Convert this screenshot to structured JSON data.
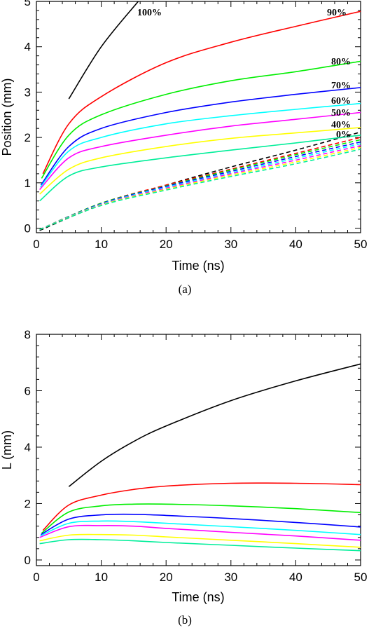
{
  "chart_data": [
    {
      "type": "line",
      "caption": "(a)",
      "xlabel": "Time (ns)",
      "ylabel": "Position (mm)",
      "xlim": [
        0,
        50
      ],
      "ylim": [
        -0.1,
        5
      ],
      "xticks": [
        "0",
        "10",
        "20",
        "30",
        "40",
        "50"
      ],
      "yticks": [
        "0",
        "1",
        "2",
        "3",
        "4",
        "5"
      ],
      "grid": false,
      "solid_series": [
        {
          "name": "100%",
          "color": "#000000",
          "x": [
            5,
            10,
            15.7
          ],
          "y": [
            2.85,
            4.0,
            5.0
          ]
        },
        {
          "name": "90%",
          "color": "#ff0000",
          "x": [
            1,
            5,
            10,
            20,
            30,
            40,
            50
          ],
          "y": [
            1.2,
            2.3,
            2.9,
            3.65,
            4.1,
            4.45,
            4.78
          ]
        },
        {
          "name": "80%",
          "color": "#00ee00",
          "x": [
            0.8,
            5,
            10,
            20,
            30,
            40,
            50
          ],
          "y": [
            1.1,
            2.05,
            2.5,
            2.95,
            3.25,
            3.45,
            3.68
          ]
        },
        {
          "name": "70%",
          "color": "#0000ff",
          "x": [
            0.7,
            5,
            10,
            20,
            30,
            40,
            50
          ],
          "y": [
            0.95,
            1.8,
            2.2,
            2.55,
            2.78,
            2.95,
            3.1
          ]
        },
        {
          "name": "60%",
          "color": "#00ffff",
          "x": [
            0.6,
            5,
            10,
            20,
            30,
            40,
            50
          ],
          "y": [
            0.9,
            1.7,
            2.0,
            2.3,
            2.48,
            2.62,
            2.75
          ]
        },
        {
          "name": "50%",
          "color": "#ff00ff",
          "x": [
            0.5,
            5,
            10,
            20,
            30,
            40,
            50
          ],
          "y": [
            0.85,
            1.55,
            1.8,
            2.05,
            2.25,
            2.4,
            2.55
          ]
        },
        {
          "name": "40%",
          "color": "#ffff00",
          "x": [
            0.5,
            5,
            10,
            20,
            30,
            40,
            50
          ],
          "y": [
            0.75,
            1.3,
            1.55,
            1.8,
            1.98,
            2.1,
            2.22
          ]
        },
        {
          "name": "0%",
          "color": "#00ee99",
          "x": [
            0.5,
            5,
            10,
            20,
            30,
            40,
            50
          ],
          "y": [
            0.6,
            1.15,
            1.35,
            1.55,
            1.72,
            1.88,
            2.05
          ]
        }
      ],
      "dashed_series": [
        {
          "color": "#000000",
          "x": [
            0.5,
            10,
            20,
            30,
            40,
            50
          ],
          "y": [
            -0.05,
            0.52,
            0.95,
            1.35,
            1.72,
            2.12
          ]
        },
        {
          "color": "#ff0000",
          "x": [
            0.5,
            10,
            20,
            30,
            40,
            50
          ],
          "y": [
            -0.03,
            0.55,
            0.95,
            1.3,
            1.65,
            2.0
          ]
        },
        {
          "color": "#00ee00",
          "x": [
            0.5,
            10,
            20,
            30,
            40,
            50
          ],
          "y": [
            -0.03,
            0.55,
            0.93,
            1.28,
            1.62,
            1.95
          ]
        },
        {
          "color": "#0000ff",
          "x": [
            0.5,
            10,
            20,
            30,
            40,
            50
          ],
          "y": [
            -0.03,
            0.54,
            0.92,
            1.25,
            1.58,
            1.9
          ]
        },
        {
          "color": "#00ffff",
          "x": [
            0.5,
            10,
            20,
            30,
            40,
            50
          ],
          "y": [
            -0.03,
            0.53,
            0.9,
            1.22,
            1.54,
            1.86
          ]
        },
        {
          "color": "#ff00ff",
          "x": [
            0.5,
            10,
            20,
            30,
            40,
            50
          ],
          "y": [
            -0.03,
            0.52,
            0.88,
            1.2,
            1.5,
            1.82
          ]
        },
        {
          "color": "#ffff00",
          "x": [
            0.5,
            10,
            20,
            30,
            40,
            50
          ],
          "y": [
            -0.03,
            0.51,
            0.86,
            1.17,
            1.46,
            1.78
          ]
        },
        {
          "color": "#00ee99",
          "x": [
            0.5,
            10,
            20,
            30,
            40,
            50
          ],
          "y": [
            -0.03,
            0.5,
            0.84,
            1.14,
            1.42,
            1.74
          ]
        }
      ]
    },
    {
      "type": "line",
      "caption": "(b)",
      "xlabel": "Time (ns)",
      "ylabel": "L (mm)",
      "xlim": [
        0,
        50
      ],
      "ylim": [
        -0.2,
        8
      ],
      "xticks": [
        "0",
        "10",
        "20",
        "30",
        "40",
        "50"
      ],
      "yticks": [
        "0",
        "2",
        "4",
        "6",
        "8"
      ],
      "grid": false,
      "series": [
        {
          "color": "#000000",
          "x": [
            5,
            10,
            15,
            20,
            30,
            40,
            50
          ],
          "y": [
            2.6,
            3.5,
            4.2,
            4.75,
            5.65,
            6.35,
            6.95
          ]
        },
        {
          "color": "#ff0000",
          "x": [
            1,
            5,
            10,
            15,
            20,
            30,
            40,
            50
          ],
          "y": [
            1.05,
            1.95,
            2.3,
            2.5,
            2.62,
            2.72,
            2.72,
            2.67
          ]
        },
        {
          "color": "#00ee00",
          "x": [
            0.8,
            5,
            10,
            15,
            20,
            30,
            40,
            50
          ],
          "y": [
            0.95,
            1.7,
            1.92,
            1.98,
            1.98,
            1.92,
            1.82,
            1.68
          ]
        },
        {
          "color": "#0000ff",
          "x": [
            0.7,
            5,
            10,
            15,
            20,
            30,
            40,
            50
          ],
          "y": [
            0.9,
            1.45,
            1.6,
            1.62,
            1.58,
            1.47,
            1.33,
            1.17
          ]
        },
        {
          "color": "#00ffff",
          "x": [
            0.6,
            5,
            10,
            15,
            20,
            30,
            40,
            50
          ],
          "y": [
            0.85,
            1.3,
            1.38,
            1.36,
            1.3,
            1.18,
            1.05,
            0.9
          ]
        },
        {
          "color": "#ff00ff",
          "x": [
            0.5,
            5,
            10,
            15,
            20,
            30,
            40,
            50
          ],
          "y": [
            0.8,
            1.18,
            1.22,
            1.2,
            1.12,
            0.98,
            0.85,
            0.7
          ]
        },
        {
          "color": "#ffff00",
          "x": [
            0.5,
            5,
            10,
            15,
            20,
            30,
            40,
            50
          ],
          "y": [
            0.68,
            0.88,
            0.9,
            0.88,
            0.82,
            0.7,
            0.58,
            0.45
          ]
        },
        {
          "color": "#00ee99",
          "x": [
            0.5,
            5,
            10,
            15,
            20,
            30,
            40,
            50
          ],
          "y": [
            0.58,
            0.72,
            0.72,
            0.68,
            0.62,
            0.52,
            0.42,
            0.33
          ]
        }
      ]
    }
  ]
}
